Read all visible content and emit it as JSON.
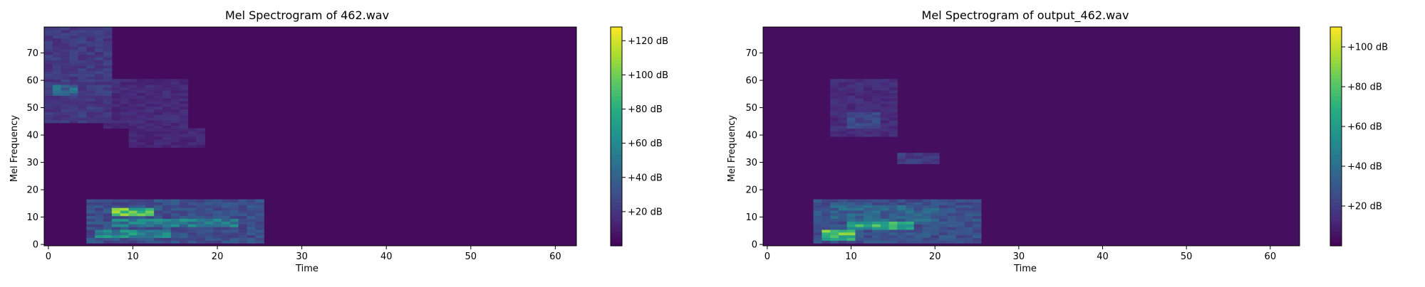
{
  "chart_data": [
    {
      "type": "heatmap",
      "title": "Mel Spectrogram of 462.wav",
      "xlabel": "Time",
      "ylabel": "Mel Frequency",
      "xlim": [
        -0.5,
        62.5
      ],
      "ylim": [
        -0.5,
        79.5
      ],
      "x_ticks": [
        0,
        10,
        20,
        30,
        40,
        50,
        60
      ],
      "y_ticks": [
        0,
        10,
        20,
        30,
        40,
        50,
        60,
        70
      ],
      "n_time": 63,
      "n_mel": 80,
      "colormap": "viridis",
      "colorbar": {
        "range": [
          0,
          128
        ],
        "ticks": [
          20,
          40,
          60,
          80,
          100,
          120
        ],
        "tick_labels": [
          "+20 dB",
          "+40 dB",
          "+60 dB",
          "+80 dB",
          "+100 dB",
          "+120 dB"
        ]
      },
      "energy_regions": [
        {
          "t": [
            0,
            7
          ],
          "mel": [
            45,
            79
          ],
          "level_db": 28
        },
        {
          "t": [
            7,
            16
          ],
          "mel": [
            43,
            60
          ],
          "level_db": 20
        },
        {
          "t": [
            10,
            18
          ],
          "mel": [
            36,
            42
          ],
          "level_db": 18
        },
        {
          "t": [
            5,
            25
          ],
          "mel": [
            1,
            16
          ],
          "level_db": 40
        },
        {
          "t": [
            8,
            12
          ],
          "mel": [
            11,
            13
          ],
          "level_db": 120
        },
        {
          "t": [
            8,
            22
          ],
          "mel": [
            7,
            9
          ],
          "level_db": 70
        },
        {
          "t": [
            6,
            14
          ],
          "mel": [
            3,
            5
          ],
          "level_db": 80
        },
        {
          "t": [
            1,
            3
          ],
          "mel": [
            55,
            58
          ],
          "level_db": 55
        }
      ]
    },
    {
      "type": "heatmap",
      "title": "Mel Spectrogram of output_462.wav",
      "xlabel": "Time",
      "ylabel": "Mel Frequency",
      "xlim": [
        -0.5,
        63.5
      ],
      "ylim": [
        -0.5,
        79.5
      ],
      "x_ticks": [
        0,
        10,
        20,
        30,
        40,
        50,
        60
      ],
      "y_ticks": [
        0,
        10,
        20,
        30,
        40,
        50,
        60,
        70
      ],
      "n_time": 64,
      "n_mel": 80,
      "colormap": "viridis",
      "colorbar": {
        "range": [
          0,
          110
        ],
        "ticks": [
          20,
          40,
          60,
          80,
          100
        ],
        "tick_labels": [
          "+20 dB",
          "+40 dB",
          "+60 dB",
          "+80 dB",
          "+100 dB"
        ]
      },
      "energy_regions": [
        {
          "t": [
            8,
            15
          ],
          "mel": [
            40,
            60
          ],
          "level_db": 18
        },
        {
          "t": [
            10,
            13
          ],
          "mel": [
            43,
            48
          ],
          "level_db": 30
        },
        {
          "t": [
            16,
            20
          ],
          "mel": [
            30,
            33
          ],
          "level_db": 25
        },
        {
          "t": [
            6,
            25
          ],
          "mel": [
            1,
            16
          ],
          "level_db": 35
        },
        {
          "t": [
            7,
            10
          ],
          "mel": [
            2,
            5
          ],
          "level_db": 95
        },
        {
          "t": [
            10,
            17
          ],
          "mel": [
            6,
            8
          ],
          "level_db": 85
        },
        {
          "t": [
            8,
            20
          ],
          "mel": [
            9,
            14
          ],
          "level_db": 45
        }
      ]
    }
  ]
}
